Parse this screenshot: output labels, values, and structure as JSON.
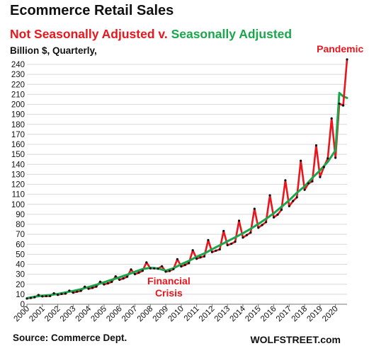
{
  "title": "Ecommerce Retail Sales",
  "subtitle": {
    "part1": "Not Seasonally Adjusted",
    "part2": " v. ",
    "part3": "Seasonally Adjusted",
    "color_nsa": "#e8161d",
    "color_sa": "#1aa64b"
  },
  "units_label": "Billion $, Quarterly,",
  "source": "Source: Commerce Dept.",
  "brand": "WOLFSTREET.com",
  "chart_data": {
    "type": "line",
    "ylim": [
      0,
      245
    ],
    "yticks": [
      0,
      10,
      20,
      30,
      40,
      50,
      60,
      70,
      80,
      90,
      100,
      110,
      120,
      130,
      140,
      150,
      160,
      170,
      180,
      190,
      200,
      210,
      220,
      230,
      240
    ],
    "xlim": [
      2000.0,
      2020.75
    ],
    "xtick_labels": [
      "2000",
      "2001",
      "2002",
      "2003",
      "2004",
      "2005",
      "2006",
      "2007",
      "2008",
      "2009",
      "2010",
      "2011",
      "2012",
      "2013",
      "2014",
      "2015",
      "2016",
      "2017",
      "2018",
      "2019",
      "2020"
    ],
    "annotations": [
      {
        "text_lines": [
          "Financial",
          "Crisis"
        ],
        "x": 2009.2,
        "y": 20,
        "color": "#e8161d"
      },
      {
        "text_lines": [
          "Pandemic"
        ],
        "x": 2020.3,
        "y": 252,
        "color": "#e8161d"
      }
    ],
    "series": [
      {
        "color": "#e8161d",
        "x": [
          2000.0,
          2000.25,
          2000.5,
          2000.75,
          2001.0,
          2001.25,
          2001.5,
          2001.75,
          2002.0,
          2002.25,
          2002.5,
          2002.75,
          2003.0,
          2003.25,
          2003.5,
          2003.75,
          2004.0,
          2004.25,
          2004.5,
          2004.75,
          2005.0,
          2005.25,
          2005.5,
          2005.75,
          2006.0,
          2006.25,
          2006.5,
          2006.75,
          2007.0,
          2007.25,
          2007.5,
          2007.75,
          2008.0,
          2008.25,
          2008.5,
          2008.75,
          2009.0,
          2009.25,
          2009.5,
          2009.75,
          2010.0,
          2010.25,
          2010.5,
          2010.75,
          2011.0,
          2011.25,
          2011.5,
          2011.75,
          2012.0,
          2012.25,
          2012.5,
          2012.75,
          2013.0,
          2013.25,
          2013.5,
          2013.75,
          2014.0,
          2014.25,
          2014.5,
          2014.75,
          2015.0,
          2015.25,
          2015.5,
          2015.75,
          2016.0,
          2016.25,
          2016.5,
          2016.75,
          2017.0,
          2017.25,
          2017.5,
          2017.75,
          2018.0,
          2018.25,
          2018.5,
          2018.75,
          2019.0,
          2019.25,
          2019.5,
          2019.75,
          2020.0,
          2020.25,
          2020.5
        ],
        "y": [
          5.7,
          6.3,
          7.0,
          9.2,
          7.9,
          8.1,
          8.2,
          10.9,
          9.4,
          10.3,
          10.6,
          13.6,
          11.6,
          12.6,
          13.4,
          17.5,
          15.5,
          16.4,
          17.6,
          22.5,
          19.8,
          20.9,
          22.4,
          27.9,
          24.5,
          25.8,
          27.5,
          34.8,
          30.1,
          31.6,
          33.5,
          41.9,
          35.9,
          35.9,
          35.6,
          38.0,
          32.6,
          33.3,
          35.1,
          45.1,
          37.8,
          39.3,
          41.2,
          54.0,
          45.5,
          46.9,
          47.9,
          64.2,
          52.2,
          53.6,
          54.9,
          73.3,
          59.1,
          60.5,
          62.6,
          83.6,
          66.7,
          69.2,
          71.7,
          95.5,
          76.6,
          79.3,
          82.2,
          109.0,
          86.9,
          89.7,
          94.5,
          124.0,
          98.2,
          103.3,
          107.0,
          143.6,
          114.5,
          120.9,
          123.0,
          159.0,
          127.3,
          137.3,
          146.0,
          186.0,
          146.6,
          200.7,
          199.0
        ]
      },
      {
        "color": "#1aa64b",
        "x": [
          2000.0,
          2000.5,
          2001.0,
          2001.5,
          2002.0,
          2002.5,
          2003.0,
          2003.5,
          2004.0,
          2004.5,
          2005.0,
          2005.5,
          2006.0,
          2006.5,
          2007.0,
          2007.5,
          2008.0,
          2008.5,
          2009.0,
          2009.5,
          2010.0,
          2010.5,
          2011.0,
          2011.5,
          2012.0,
          2012.5,
          2013.0,
          2013.5,
          2014.0,
          2014.5,
          2015.0,
          2015.5,
          2016.0,
          2016.5,
          2017.0,
          2017.5,
          2018.0,
          2018.5,
          2019.0,
          2019.5,
          2020.0,
          2020.25,
          2020.5,
          2020.75
        ],
        "y": [
          6.0,
          7.5,
          8.5,
          9.2,
          10.3,
          11.8,
          13.3,
          15.0,
          17.2,
          19.5,
          22.0,
          24.5,
          27.0,
          29.5,
          32.5,
          35.2,
          36.5,
          35.8,
          33.6,
          36.0,
          40.0,
          43.3,
          47.5,
          50.8,
          55.0,
          59.0,
          63.0,
          67.0,
          71.0,
          75.5,
          80.3,
          85.5,
          91.0,
          97.5,
          104.0,
          111.5,
          118.0,
          126.5,
          134.0,
          142.5,
          154.0,
          211.5,
          208.0,
          206.5
        ]
      },
      {
        "color": "#e8161d",
        "x": [
          2020.5,
          2020.75
        ],
        "y": [
          199.0,
          245.0
        ]
      }
    ]
  }
}
